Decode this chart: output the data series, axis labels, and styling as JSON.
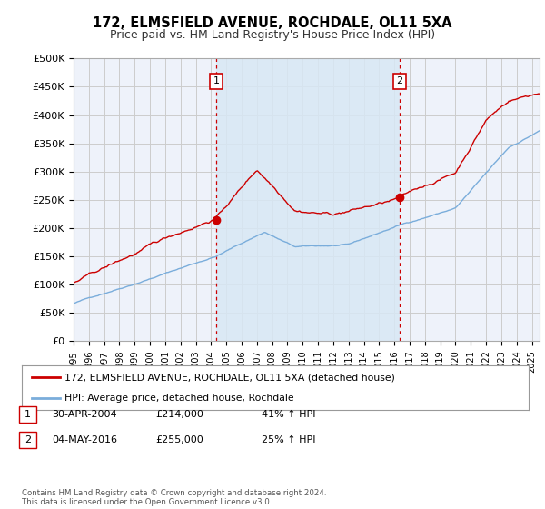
{
  "title": "172, ELMSFIELD AVENUE, ROCHDALE, OL11 5XA",
  "subtitle": "Price paid vs. HM Land Registry's House Price Index (HPI)",
  "ylabel_ticks": [
    "£0",
    "£50K",
    "£100K",
    "£150K",
    "£200K",
    "£250K",
    "£300K",
    "£350K",
    "£400K",
    "£450K",
    "£500K"
  ],
  "ytick_values": [
    0,
    50000,
    100000,
    150000,
    200000,
    250000,
    300000,
    350000,
    400000,
    450000,
    500000
  ],
  "ylim": [
    0,
    500000
  ],
  "xlim_start": 1995.0,
  "xlim_end": 2025.5,
  "red_line_color": "#cc0000",
  "blue_line_color": "#7aaddb",
  "fill_color": "#d8e8f5",
  "marker1_x": 2004.33,
  "marker1_y": 214000,
  "marker2_x": 2016.35,
  "marker2_y": 255000,
  "marker1_label": "1",
  "marker2_label": "2",
  "legend_line1": "172, ELMSFIELD AVENUE, ROCHDALE, OL11 5XA (detached house)",
  "legend_line2": "HPI: Average price, detached house, Rochdale",
  "footer": "Contains HM Land Registry data © Crown copyright and database right 2024.\nThis data is licensed under the Open Government Licence v3.0.",
  "background_color": "#ffffff",
  "plot_bg_color": "#eef2fa",
  "grid_color": "#cccccc",
  "title_fontsize": 10.5,
  "subtitle_fontsize": 9,
  "xtick_years": [
    1995,
    1996,
    1997,
    1998,
    1999,
    2000,
    2001,
    2002,
    2003,
    2004,
    2005,
    2006,
    2007,
    2008,
    2009,
    2010,
    2011,
    2012,
    2013,
    2014,
    2015,
    2016,
    2017,
    2018,
    2019,
    2020,
    2021,
    2022,
    2023,
    2024,
    2025
  ]
}
